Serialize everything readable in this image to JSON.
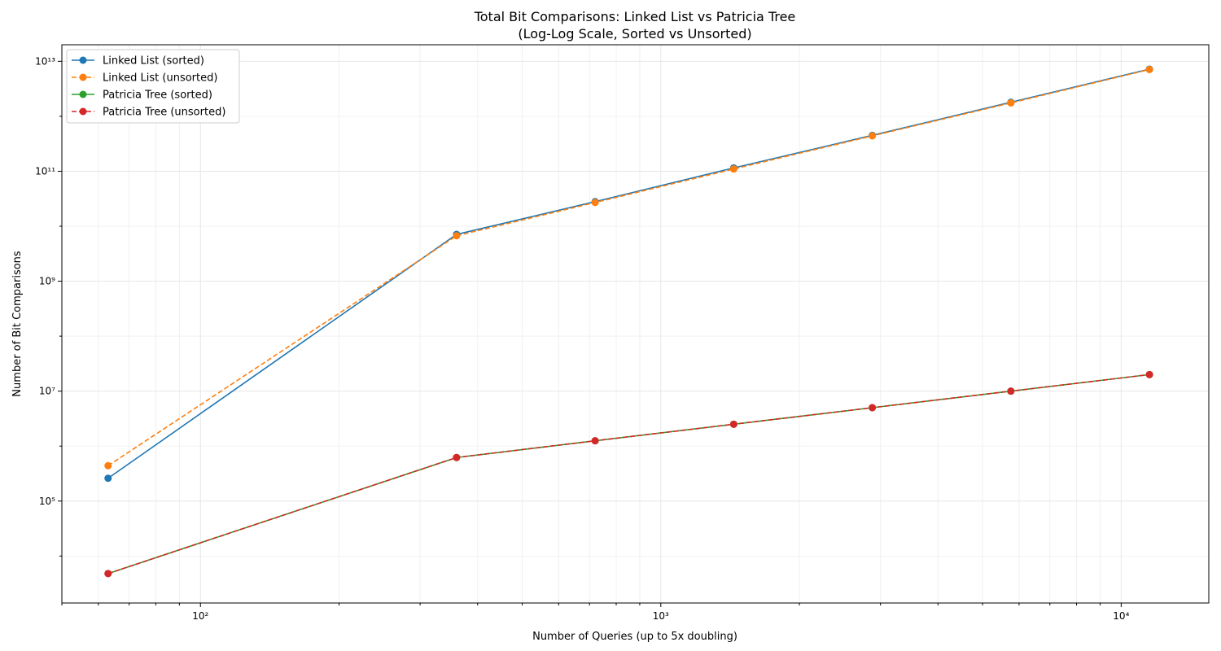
{
  "chart_data": {
    "type": "line",
    "title": "Total Bit Comparisons: Linked List vs Patricia Tree",
    "subtitle": "(Log-Log Scale, Sorted vs Unsorted)",
    "xlabel": "Number of Queries (up to 5x doubling)",
    "ylabel": "Number of Bit Comparisons",
    "x_scale": "log",
    "y_scale": "log",
    "xlim": [
      50,
      15500
    ],
    "ylim": [
      1400,
      20000000000000
    ],
    "grid": true,
    "legend_position": "upper-left",
    "x_tick_labels": [
      {
        "value": 100,
        "label": "10²"
      },
      {
        "value": 1000,
        "label": "10³"
      },
      {
        "value": 10000,
        "label": "10⁴"
      }
    ],
    "y_tick_labels": [
      {
        "value": 100000,
        "label": "10⁵"
      },
      {
        "value": 10000000,
        "label": "10⁷"
      },
      {
        "value": 1000000000,
        "label": "10⁹"
      },
      {
        "value": 100000000000,
        "label": "10¹¹"
      },
      {
        "value": 10000000000000,
        "label": "10¹³"
      }
    ],
    "x": [
      63,
      360,
      720,
      1440,
      2880,
      5760,
      11520
    ],
    "series": [
      {
        "name": "Linked List (sorted)",
        "color": "#1f77b4",
        "line_style": "solid",
        "values": [
          260000,
          7100000000,
          28000000000,
          115000000000,
          450000000000,
          1800000000000,
          7200000000000
        ]
      },
      {
        "name": "Linked List (unsorted)",
        "color": "#ff7f0e",
        "line_style": "dashed",
        "values": [
          440000,
          6700000000,
          27000000000,
          110000000000,
          440000000000,
          1750000000000,
          7100000000000
        ]
      },
      {
        "name": "Patricia Tree (sorted)",
        "color": "#2ca02c",
        "line_style": "solid",
        "values": [
          4800,
          620000,
          1250000,
          2500000,
          5000000,
          10000000,
          20000000
        ]
      },
      {
        "name": "Patricia Tree (unsorted)",
        "color": "#d62728",
        "line_style": "dashed",
        "values": [
          4800,
          620000,
          1250000,
          2500000,
          5000000,
          10000000,
          20000000
        ]
      }
    ]
  }
}
